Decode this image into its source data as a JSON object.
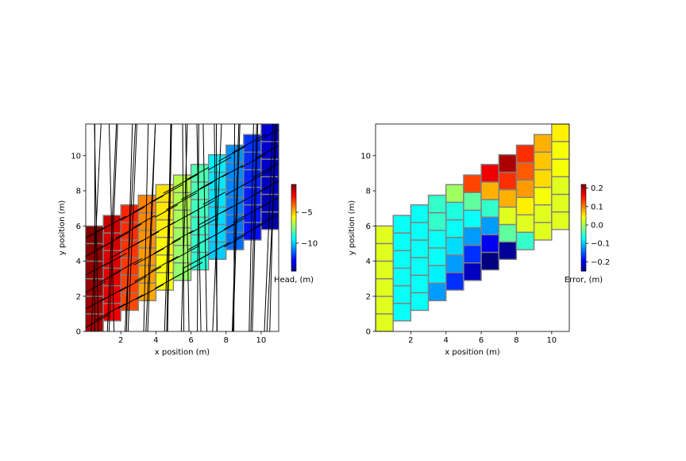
{
  "chart_data": [
    {
      "type": "heatmap",
      "title": "",
      "xlabel": "x position (m)",
      "ylabel": "y position (m)",
      "xlim": [
        0,
        11
      ],
      "ylim": [
        0,
        11.8
      ],
      "xticks": [
        "2",
        "4",
        "6",
        "8",
        "10"
      ],
      "yticks": [
        "0",
        "2",
        "4",
        "6",
        "8",
        "10"
      ],
      "colormap": "jet",
      "color_range": [
        -14.5,
        -0.5
      ],
      "colorbar_label": "Head, (m)",
      "colorbar_ticks": [
        "−5",
        "−10"
      ],
      "columns_x": [
        0.5,
        1.5,
        2.5,
        3.5,
        4.5,
        5.5,
        6.5,
        7.5,
        8.5,
        9.5,
        10.5
      ],
      "column_base": [
        0,
        0.6,
        1.2,
        1.75,
        2.35,
        2.9,
        3.5,
        4.1,
        4.65,
        5.2,
        5.8
      ],
      "column_top": [
        6.0,
        6.6,
        7.2,
        7.75,
        8.35,
        8.9,
        9.5,
        10.05,
        10.6,
        11.2,
        11.8
      ],
      "cells_per_column": 6,
      "values_by_column": [
        -0.8,
        -1.8,
        -3.0,
        -4.3,
        -5.6,
        -7.0,
        -8.4,
        -9.7,
        -11.0,
        -12.3,
        -13.6
      ],
      "values_within_column_gradient": 0.5,
      "vector_overlay": "specific discharge arrows (quiver)"
    },
    {
      "type": "heatmap",
      "title": "",
      "xlabel": "x position (m)",
      "ylabel": "y position (m)",
      "xlim": [
        0,
        11
      ],
      "ylim": [
        0,
        11.8
      ],
      "xticks": [
        "2",
        "4",
        "6",
        "8",
        "10"
      ],
      "yticks": [
        "0",
        "2",
        "4",
        "6",
        "8",
        "10"
      ],
      "colormap": "jet",
      "color_range": [
        -0.25,
        0.22
      ],
      "colorbar_label": "Error, (m)",
      "colorbar_ticks": [
        "0.2",
        "0.1",
        "0.0",
        "−0.1",
        "−0.2"
      ],
      "columns_x": [
        0.5,
        1.5,
        2.5,
        3.5,
        4.5,
        5.5,
        6.5,
        7.5,
        8.5,
        9.5,
        10.5
      ],
      "column_base": [
        0,
        0.6,
        1.2,
        1.75,
        2.35,
        2.9,
        3.5,
        4.1,
        4.65,
        5.2,
        5.8
      ],
      "column_top": [
        6.0,
        6.6,
        7.2,
        7.75,
        8.35,
        8.9,
        9.5,
        10.05,
        10.6,
        11.2,
        11.8
      ],
      "cells_per_column": 6,
      "values_bottom_to_top": [
        [
          0.03,
          0.03,
          0.03,
          0.03,
          0.03,
          0.03
        ],
        [
          -0.07,
          -0.07,
          -0.07,
          -0.07,
          -0.07,
          -0.07
        ],
        [
          -0.07,
          -0.07,
          -0.07,
          -0.07,
          -0.07,
          -0.07
        ],
        [
          -0.12,
          -0.08,
          -0.07,
          -0.07,
          -0.05,
          -0.05
        ],
        [
          -0.17,
          -0.12,
          -0.09,
          -0.07,
          -0.06,
          0.0
        ],
        [
          -0.22,
          -0.17,
          -0.12,
          -0.07,
          -0.03,
          0.13
        ],
        [
          -0.25,
          -0.2,
          -0.12,
          -0.05,
          0.08,
          0.17
        ],
        [
          -0.24,
          -0.03,
          0.03,
          0.08,
          0.14,
          0.2
        ],
        [
          -0.05,
          0.03,
          0.05,
          0.09,
          0.12,
          0.14
        ],
        [
          0.03,
          0.03,
          0.04,
          0.06,
          0.07,
          0.08
        ],
        [
          0.03,
          0.03,
          0.03,
          0.04,
          0.04,
          0.05
        ]
      ]
    }
  ]
}
